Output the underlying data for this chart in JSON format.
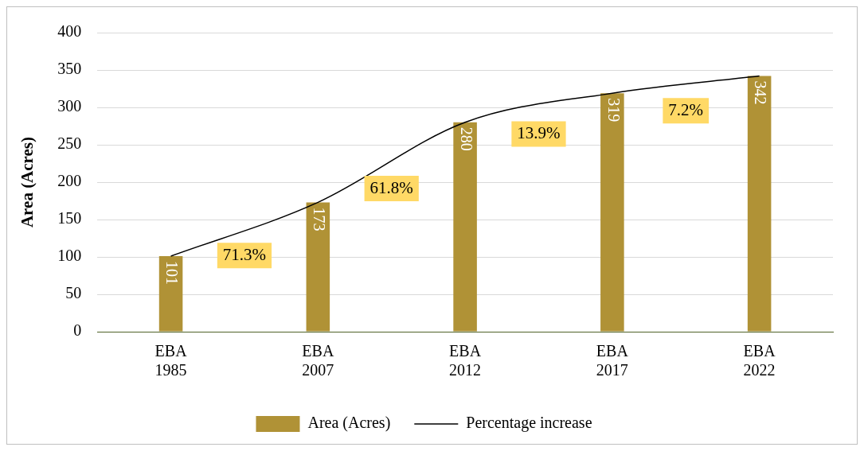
{
  "chart_data": {
    "type": "bar",
    "ylabel": "Area (Acres)",
    "categories": [
      "EBA\n1985",
      "EBA\n2007",
      "EBA\n2012",
      "EBA\n2017",
      "EBA\n2022"
    ],
    "series": [
      {
        "name": "Area (Acres)",
        "color": "#b09236",
        "values": [
          101,
          173,
          280,
          319,
          342
        ],
        "value_labels": [
          "101",
          "173",
          "280",
          "319",
          "342"
        ]
      },
      {
        "name": "Percentage increase",
        "type": "line",
        "color": "#000000",
        "values": [
          101,
          173,
          280,
          319,
          342
        ]
      }
    ],
    "ylim": [
      0,
      400
    ],
    "yticks": [
      0,
      50,
      100,
      150,
      200,
      250,
      300,
      350,
      400
    ],
    "grid": "y",
    "legend": "bottom",
    "marker": "none",
    "line_style": "solid",
    "annotations": [
      "71.3%",
      "61.8%",
      "13.9%",
      "7.2%"
    ]
  }
}
